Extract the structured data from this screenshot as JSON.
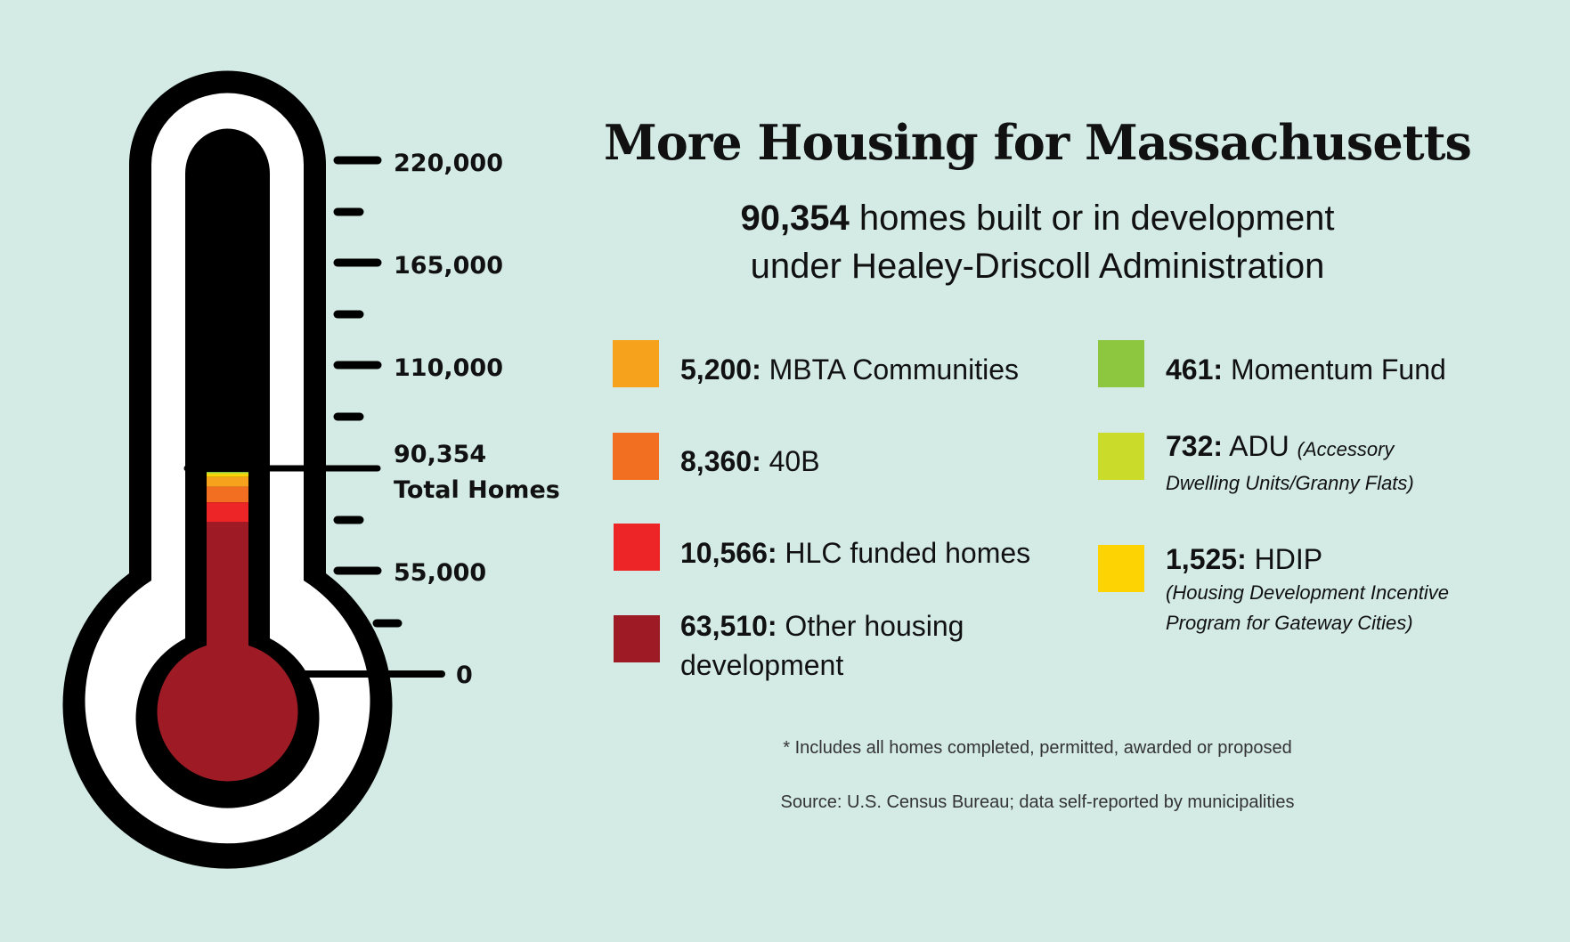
{
  "title": "More Housing for Massachusetts",
  "subtitle": {
    "total": "90,354",
    "line1_rest": " homes built or in development",
    "line2": "under Healey-Driscoll Administration"
  },
  "colors": {
    "background": "#d3ebe4",
    "MBTA Communities": "#f7a21d",
    "40B": "#f26f22",
    "HLC funded homes": "#ed2526",
    "Other housing development": "#9e1b25",
    "Momentum Fund": "#8dc63f",
    "ADU": "#cbdb2a",
    "HDIP": "#fed304"
  },
  "legend": {
    "left": [
      {
        "value": "5,200:",
        "label": " MBTA Communities"
      },
      {
        "value": "8,360:",
        "label": " 40B"
      },
      {
        "value": "10,566:",
        "label": " HLC funded homes"
      },
      {
        "value": "63,510:",
        "label": " Other housing",
        "label2": "development"
      }
    ],
    "right": [
      {
        "value": "461:",
        "label": " Momentum Fund"
      },
      {
        "value": "732:",
        "label": " ADU ",
        "note": "(Accessory",
        "note2": "Dwelling Units/Granny Flats)"
      },
      {
        "value": "1,525:",
        "label": " HDIP",
        "note2": "(Housing Development Incentive",
        "note3": "Program for Gateway Cities)"
      }
    ]
  },
  "footnote": "* Includes all homes completed, permitted, awarded or proposed",
  "source": "Source: U.S. Census Bureau; data self-reported by municipalities",
  "chart_data": {
    "type": "bar",
    "subtype": "stacked thermometer",
    "title": "More Housing for Massachusetts",
    "tick_labels": [
      "220,000",
      "165,000",
      "110,000",
      "55,000",
      "0"
    ],
    "total_label": "90,354",
    "total_caption": "Total Homes",
    "total": 90354,
    "series": [
      {
        "name": "Other housing development",
        "value": 63510,
        "color": "#9e1b25"
      },
      {
        "name": "HLC funded homes",
        "value": 10566,
        "color": "#ed2526"
      },
      {
        "name": "40B",
        "value": 8360,
        "color": "#f26f22"
      },
      {
        "name": "MBTA Communities",
        "value": 5200,
        "color": "#f7a21d"
      },
      {
        "name": "HDIP",
        "value": 1525,
        "color": "#fed304"
      },
      {
        "name": "ADU",
        "value": 732,
        "color": "#cbdb2a"
      },
      {
        "name": "Momentum Fund",
        "value": 461,
        "color": "#8dc63f"
      }
    ]
  }
}
